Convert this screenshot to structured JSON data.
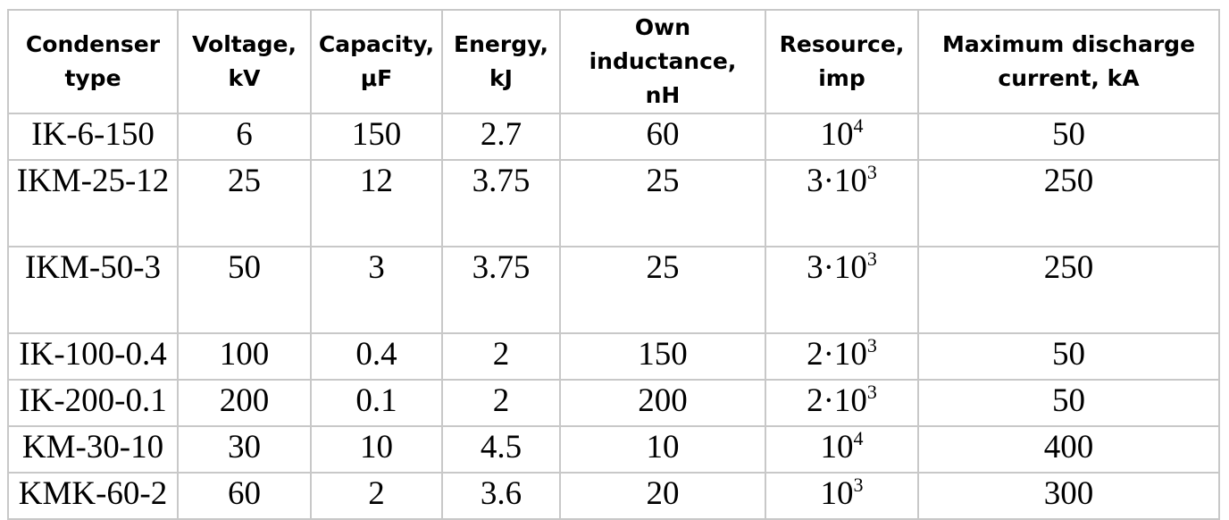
{
  "headers": {
    "type": [
      "Condenser",
      "type"
    ],
    "voltage": [
      "Voltage,",
      "kV"
    ],
    "capacity": [
      "Capacity,",
      "μF"
    ],
    "energy": [
      "Energy,",
      "kJ"
    ],
    "inductance": [
      "Own inductance,",
      "nH"
    ],
    "resource": [
      "Resource,",
      "imp"
    ],
    "current": [
      "Maximum discharge",
      "current, kA"
    ]
  },
  "rows": [
    {
      "type": "IK-6-150",
      "voltage": "6",
      "capacity": "150",
      "energy": "2.7",
      "inductance": "60",
      "resource_base": "10",
      "resource_coef": "",
      "resource_exp": "4",
      "current": "50"
    },
    {
      "type": "IKM-25-12",
      "voltage": "25",
      "capacity": "12",
      "energy": "3.75",
      "inductance": "25",
      "resource_base": "10",
      "resource_coef": "3·",
      "resource_exp": "3",
      "current": "250"
    },
    {
      "type": "IKM-50-3",
      "voltage": "50",
      "capacity": "3",
      "energy": "3.75",
      "inductance": "25",
      "resource_base": "10",
      "resource_coef": "3·",
      "resource_exp": "3",
      "current": "250"
    },
    {
      "type": "IK-100-0.4",
      "voltage": "100",
      "capacity": "0.4",
      "energy": "2",
      "inductance": "150",
      "resource_base": "10",
      "resource_coef": "2·",
      "resource_exp": "3",
      "current": "50"
    },
    {
      "type": "IK-200-0.1",
      "voltage": "200",
      "capacity": "0.1",
      "energy": "2",
      "inductance": "200",
      "resource_base": "10",
      "resource_coef": "2·",
      "resource_exp": "3",
      "current": "50"
    },
    {
      "type": "KM-30-10",
      "voltage": "30",
      "capacity": "10",
      "energy": "4.5",
      "inductance": "10",
      "resource_base": "10",
      "resource_coef": "",
      "resource_exp": "4",
      "current": "400"
    },
    {
      "type": "KMK-60-2",
      "voltage": "60",
      "capacity": "2",
      "energy": "3.6",
      "inductance": "20",
      "resource_base": "10",
      "resource_coef": "",
      "resource_exp": "3",
      "current": "300"
    }
  ]
}
